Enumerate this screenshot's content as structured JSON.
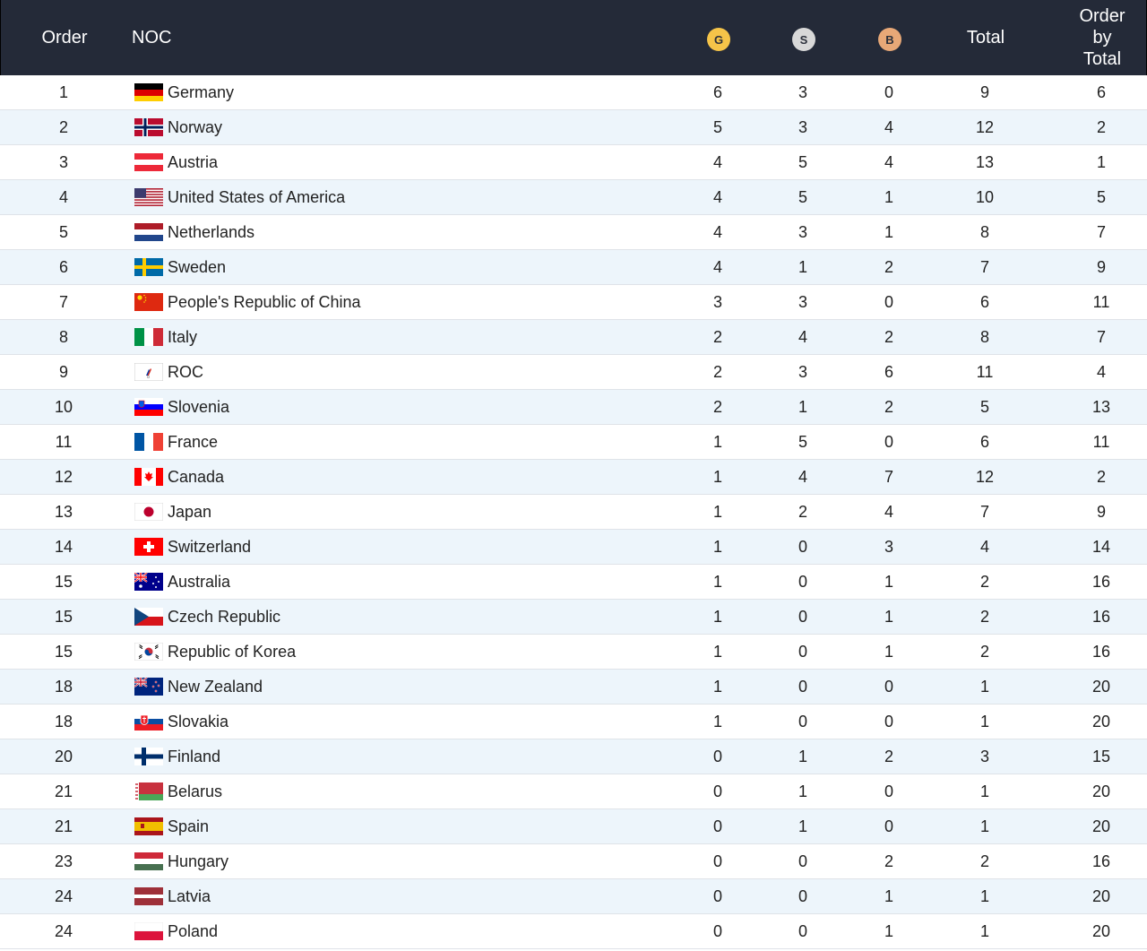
{
  "header": {
    "order": "Order",
    "noc": "NOC",
    "gold": "G",
    "silver": "S",
    "bronze": "B",
    "total": "Total",
    "order_by_total": [
      "Order",
      "by",
      "Total"
    ]
  },
  "colors": {
    "header_bg": "#242a38",
    "gold": "#f5c449",
    "silver": "#d8d8d8",
    "bronze": "#e8a877",
    "row_alt": "#edf5fb"
  },
  "rows": [
    {
      "order": "1",
      "flag": "germany-flag-icon",
      "noc": "Germany",
      "g": "6",
      "s": "3",
      "b": "0",
      "total": "9",
      "obt": "6"
    },
    {
      "order": "2",
      "flag": "norway-flag-icon",
      "noc": "Norway",
      "g": "5",
      "s": "3",
      "b": "4",
      "total": "12",
      "obt": "2"
    },
    {
      "order": "3",
      "flag": "austria-flag-icon",
      "noc": "Austria",
      "g": "4",
      "s": "5",
      "b": "4",
      "total": "13",
      "obt": "1"
    },
    {
      "order": "4",
      "flag": "usa-flag-icon",
      "noc": "United States of America",
      "g": "4",
      "s": "5",
      "b": "1",
      "total": "10",
      "obt": "5"
    },
    {
      "order": "5",
      "flag": "netherlands-flag-icon",
      "noc": "Netherlands",
      "g": "4",
      "s": "3",
      "b": "1",
      "total": "8",
      "obt": "7"
    },
    {
      "order": "6",
      "flag": "sweden-flag-icon",
      "noc": "Sweden",
      "g": "4",
      "s": "1",
      "b": "2",
      "total": "7",
      "obt": "9"
    },
    {
      "order": "7",
      "flag": "china-flag-icon",
      "noc": "People's Republic of China",
      "g": "3",
      "s": "3",
      "b": "0",
      "total": "6",
      "obt": "11"
    },
    {
      "order": "8",
      "flag": "italy-flag-icon",
      "noc": "Italy",
      "g": "2",
      "s": "4",
      "b": "2",
      "total": "8",
      "obt": "7"
    },
    {
      "order": "9",
      "flag": "roc-flag-icon",
      "noc": "ROC",
      "g": "2",
      "s": "3",
      "b": "6",
      "total": "11",
      "obt": "4"
    },
    {
      "order": "10",
      "flag": "slovenia-flag-icon",
      "noc": "Slovenia",
      "g": "2",
      "s": "1",
      "b": "2",
      "total": "5",
      "obt": "13"
    },
    {
      "order": "11",
      "flag": "france-flag-icon",
      "noc": "France",
      "g": "1",
      "s": "5",
      "b": "0",
      "total": "6",
      "obt": "11"
    },
    {
      "order": "12",
      "flag": "canada-flag-icon",
      "noc": "Canada",
      "g": "1",
      "s": "4",
      "b": "7",
      "total": "12",
      "obt": "2"
    },
    {
      "order": "13",
      "flag": "japan-flag-icon",
      "noc": "Japan",
      "g": "1",
      "s": "2",
      "b": "4",
      "total": "7",
      "obt": "9"
    },
    {
      "order": "14",
      "flag": "switzerland-flag-icon",
      "noc": "Switzerland",
      "g": "1",
      "s": "0",
      "b": "3",
      "total": "4",
      "obt": "14"
    },
    {
      "order": "15",
      "flag": "australia-flag-icon",
      "noc": "Australia",
      "g": "1",
      "s": "0",
      "b": "1",
      "total": "2",
      "obt": "16"
    },
    {
      "order": "15",
      "flag": "czech-flag-icon",
      "noc": "Czech Republic",
      "g": "1",
      "s": "0",
      "b": "1",
      "total": "2",
      "obt": "16"
    },
    {
      "order": "15",
      "flag": "korea-flag-icon",
      "noc": "Republic of Korea",
      "g": "1",
      "s": "0",
      "b": "1",
      "total": "2",
      "obt": "16"
    },
    {
      "order": "18",
      "flag": "new-zealand-flag-icon",
      "noc": "New Zealand",
      "g": "1",
      "s": "0",
      "b": "0",
      "total": "1",
      "obt": "20"
    },
    {
      "order": "18",
      "flag": "slovakia-flag-icon",
      "noc": "Slovakia",
      "g": "1",
      "s": "0",
      "b": "0",
      "total": "1",
      "obt": "20"
    },
    {
      "order": "20",
      "flag": "finland-flag-icon",
      "noc": "Finland",
      "g": "0",
      "s": "1",
      "b": "2",
      "total": "3",
      "obt": "15"
    },
    {
      "order": "21",
      "flag": "belarus-flag-icon",
      "noc": "Belarus",
      "g": "0",
      "s": "1",
      "b": "0",
      "total": "1",
      "obt": "20"
    },
    {
      "order": "21",
      "flag": "spain-flag-icon",
      "noc": "Spain",
      "g": "0",
      "s": "1",
      "b": "0",
      "total": "1",
      "obt": "20"
    },
    {
      "order": "23",
      "flag": "hungary-flag-icon",
      "noc": "Hungary",
      "g": "0",
      "s": "0",
      "b": "2",
      "total": "2",
      "obt": "16"
    },
    {
      "order": "24",
      "flag": "latvia-flag-icon",
      "noc": "Latvia",
      "g": "0",
      "s": "0",
      "b": "1",
      "total": "1",
      "obt": "20"
    },
    {
      "order": "24",
      "flag": "poland-flag-icon",
      "noc": "Poland",
      "g": "0",
      "s": "0",
      "b": "1",
      "total": "1",
      "obt": "20"
    }
  ]
}
